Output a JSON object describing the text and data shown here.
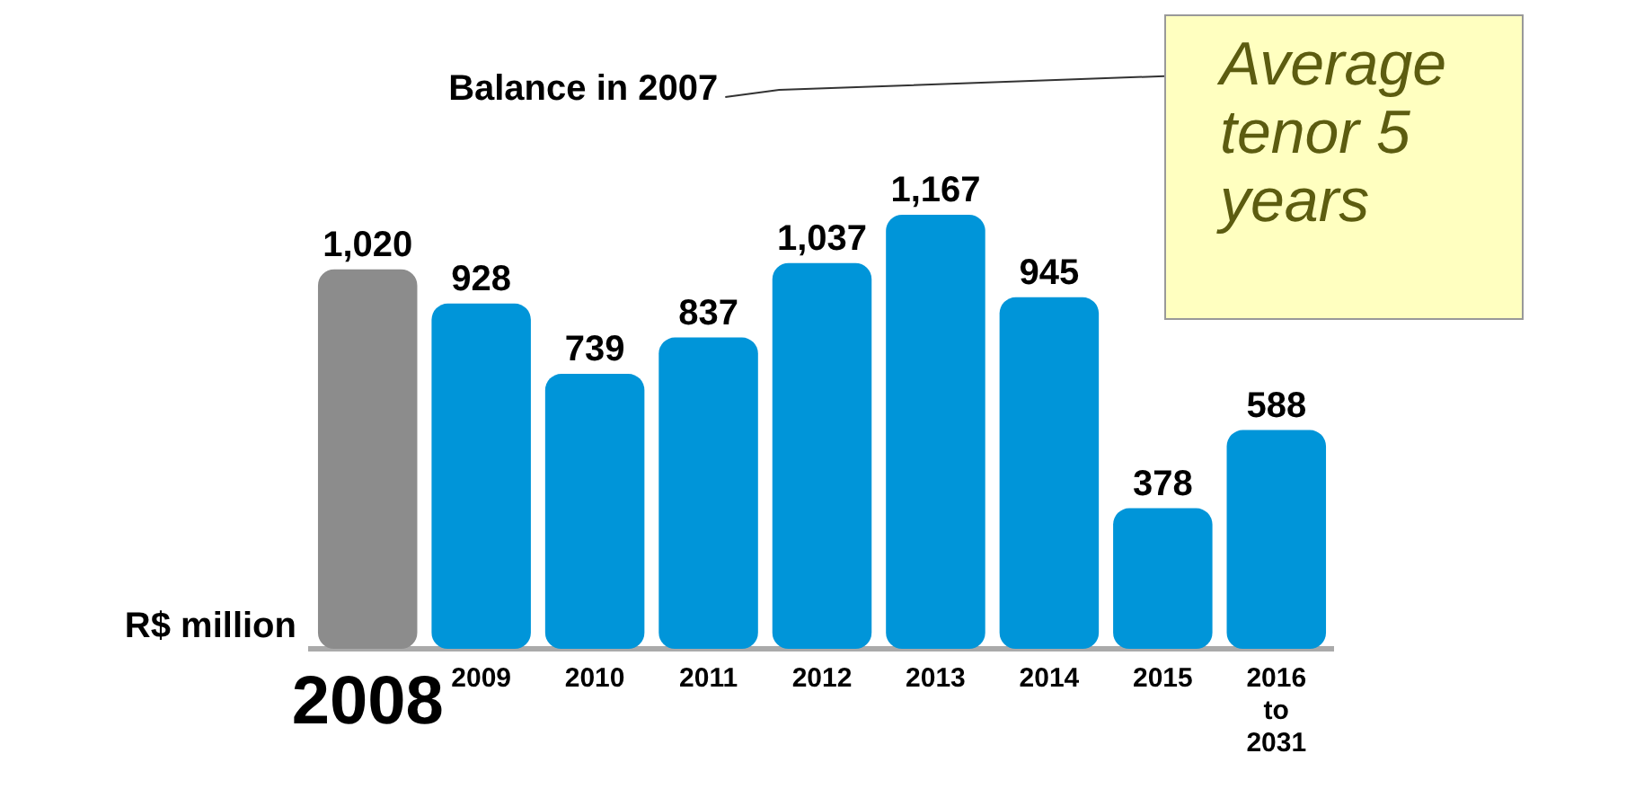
{
  "chart_data": {
    "type": "bar",
    "categories": [
      "2008",
      "2009",
      "2010",
      "2011",
      "2012",
      "2013",
      "2014",
      "2015",
      "2016 to 2031"
    ],
    "values": [
      1020,
      928,
      739,
      837,
      1037,
      1167,
      945,
      378,
      588
    ],
    "colors": [
      "#8c8c8c",
      "#0095d9",
      "#0095d9",
      "#0095d9",
      "#0095d9",
      "#0095d9",
      "#0095d9",
      "#0095d9",
      "#0095d9"
    ],
    "value_labels": [
      "1,020",
      "928",
      "739",
      "837",
      "1,037",
      "1,167",
      "945",
      "378",
      "588"
    ],
    "ylabel": "R$ million",
    "legend": false,
    "grid": false,
    "annotations": [
      "Balance in 2007",
      "Average tenor 5 years"
    ]
  }
}
